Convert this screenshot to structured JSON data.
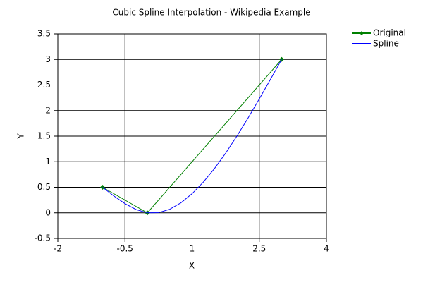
{
  "chart_data": {
    "type": "line",
    "title": "Cubic Spline Interpolation - Wikipedia Example",
    "x_label": "X",
    "y_label": "Y",
    "xlim": [
      -2,
      4
    ],
    "xticks": [
      -2,
      -0.5,
      1,
      2.5,
      4
    ],
    "ylim": [
      -0.5,
      3.5
    ],
    "yticks": [
      -0.5,
      0,
      0.5,
      1,
      1.5,
      2,
      2.5,
      3,
      3.5
    ],
    "grid": true,
    "legend": "top-right",
    "series": [
      {
        "name": "Original",
        "color": "#008000",
        "marker": "diamond",
        "x": [
          -1,
          0,
          3
        ],
        "values": [
          0.5,
          0,
          3
        ]
      },
      {
        "name": "Spline",
        "color": "#0000ff",
        "x": [
          -1,
          -0.75,
          -0.5,
          -0.25,
          0,
          0.25,
          0.5,
          0.75,
          1,
          1.25,
          1.5,
          1.75,
          2,
          2.25,
          2.5,
          2.75,
          3
        ],
        "values": [
          0.5,
          0.331,
          0.18,
          0.064,
          0,
          0.003,
          0.07,
          0.196,
          0.375,
          0.601,
          0.867,
          1.169,
          1.5,
          1.855,
          2.227,
          2.61,
          3
        ]
      }
    ]
  }
}
